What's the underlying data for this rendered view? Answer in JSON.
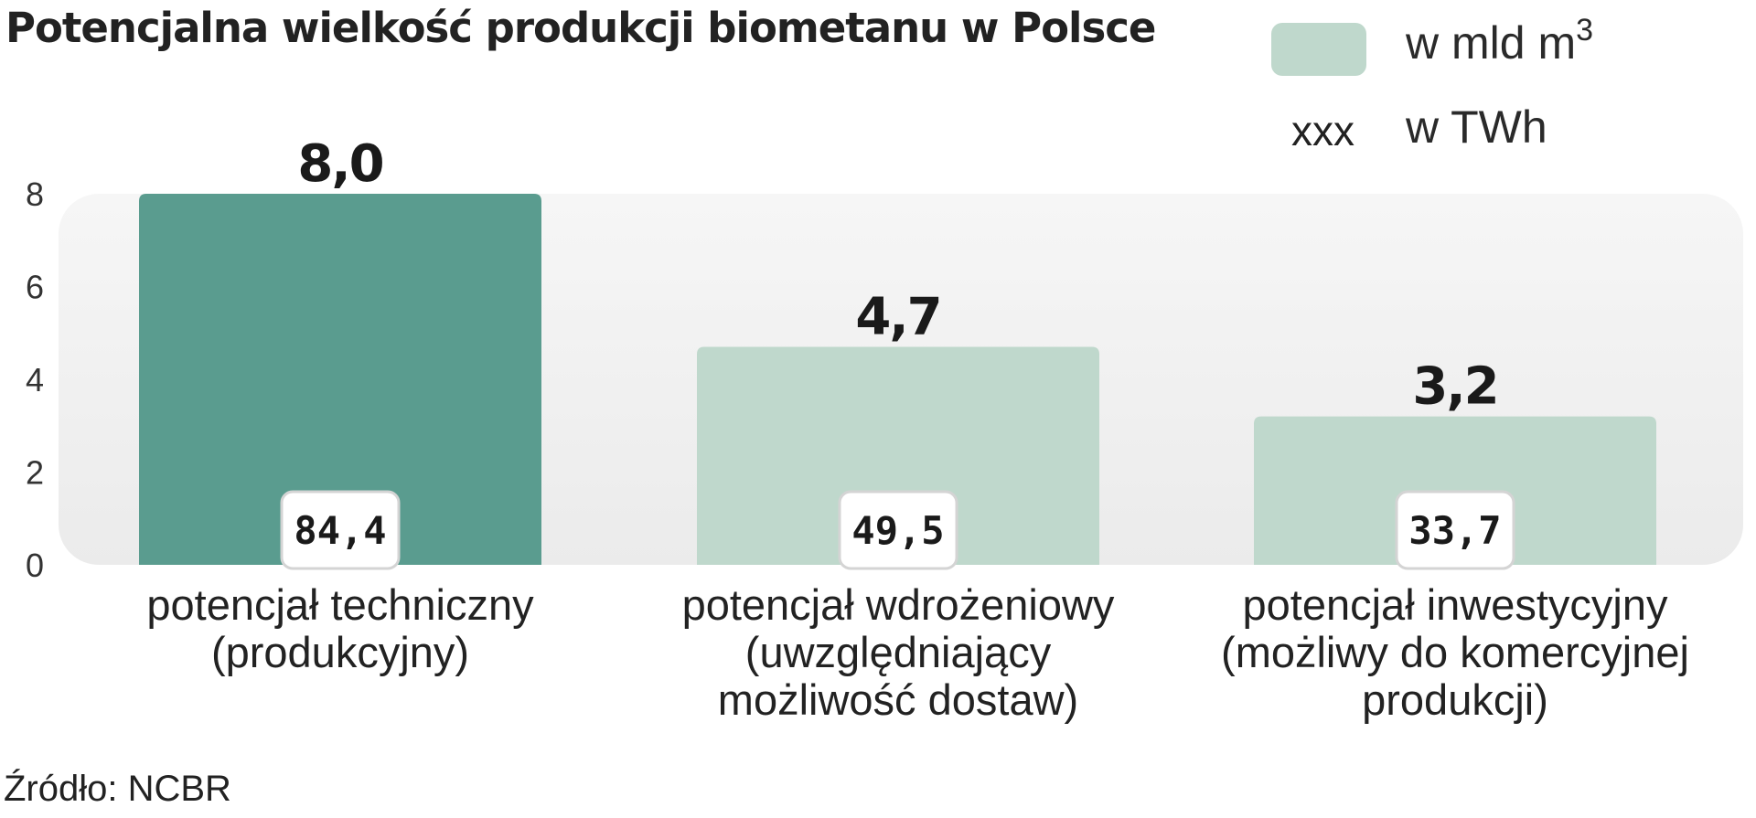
{
  "title": "Potencjalna wielkość produkcji biometanu w Polsce",
  "legend": {
    "unit_prefix": "w mld m",
    "unit_exponent": "3",
    "secondary_marker": "xxx",
    "secondary_label": "w TWh"
  },
  "source": "Źródło: NCBR",
  "colors": {
    "primary_bar": "#5a9c8f",
    "secondary_bar": "#bfd8cc",
    "plot_bg": "#efefef",
    "label_box_border": "#d4d4d4"
  },
  "chart_data": {
    "type": "bar",
    "title": "Potencjalna wielkość produkcji biometanu w Polsce",
    "categories": [
      [
        "potencjał techniczny",
        "(produkcyjny)"
      ],
      [
        "potencjał wdrożeniowy",
        "(uwzględniający",
        "możliwość dostaw)"
      ],
      [
        "potencjał inwestycyjny",
        "(możliwy do komercyjnej",
        "produkcji)"
      ]
    ],
    "series": [
      {
        "name": "w mld m3",
        "values": [
          8.0,
          4.7,
          3.2
        ],
        "labels": [
          "8,0",
          "4,7",
          "3,2"
        ]
      },
      {
        "name": "w TWh",
        "values": [
          84.4,
          49.5,
          33.7
        ],
        "labels": [
          "84,4",
          "49,5",
          "33,7"
        ]
      }
    ],
    "highlight_index": 0,
    "ylim": [
      0,
      8
    ],
    "yticks": [
      0,
      2,
      4,
      6,
      8
    ],
    "grid": false,
    "legend_position": "top-right"
  }
}
